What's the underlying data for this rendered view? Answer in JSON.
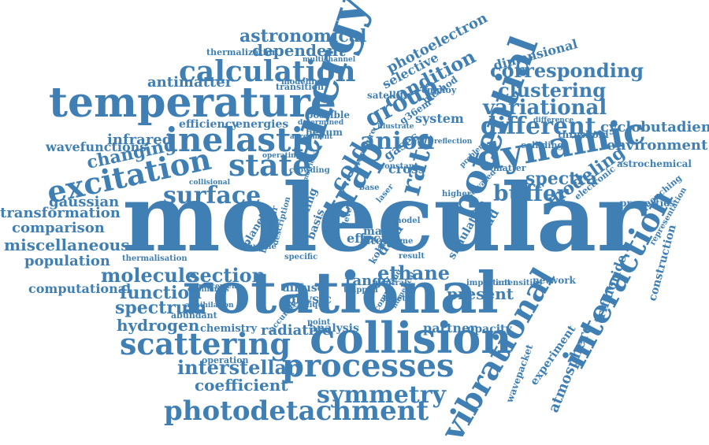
{
  "cloud": {
    "color": "#3f7fb3",
    "words": [
      {
        "text": "molecular"
      },
      {
        "text": "rotational"
      },
      {
        "text": "collision"
      },
      {
        "text": "temperature"
      },
      {
        "text": "processes"
      },
      {
        "text": "scattering"
      },
      {
        "text": "vibrational"
      },
      {
        "text": "interaction"
      },
      {
        "text": "potential"
      },
      {
        "text": "energy"
      },
      {
        "text": "dynamic"
      },
      {
        "text": "photodetachment"
      },
      {
        "text": "excitation"
      },
      {
        "text": "inelastic"
      },
      {
        "text": "state"
      },
      {
        "text": "surface"
      },
      {
        "text": "calculation"
      },
      {
        "text": "trap"
      },
      {
        "text": "rate"
      },
      {
        "text": "symmetry"
      },
      {
        "text": "anion"
      },
      {
        "text": "group"
      },
      {
        "text": "different"
      },
      {
        "text": "variational"
      },
      {
        "text": "interstellar"
      },
      {
        "text": "condition"
      },
      {
        "text": "cold"
      },
      {
        "text": "clustering"
      },
      {
        "text": "buffer"
      },
      {
        "text": "modeling"
      },
      {
        "text": "ethane"
      },
      {
        "text": "section"
      },
      {
        "text": "molecule"
      },
      {
        "text": "spectrum"
      },
      {
        "text": "corresponding"
      },
      {
        "text": "astronomical"
      },
      {
        "text": "changing"
      },
      {
        "text": "miscellaneous"
      },
      {
        "text": "function"
      },
      {
        "text": "present"
      },
      {
        "text": "hydrogen"
      },
      {
        "text": "coefficient"
      },
      {
        "text": "spectra"
      },
      {
        "text": "environment"
      },
      {
        "text": "cyclobutadiene"
      },
      {
        "text": "gaussian"
      },
      {
        "text": "comparison"
      },
      {
        "text": "transformation"
      },
      {
        "text": "population"
      },
      {
        "text": "computational"
      },
      {
        "text": "infrared"
      },
      {
        "text": "wavefunctions"
      },
      {
        "text": "dependent"
      },
      {
        "text": "antimatter"
      },
      {
        "text": "photoelectron"
      },
      {
        "text": "selective"
      },
      {
        "text": "dimensional"
      },
      {
        "text": "range"
      },
      {
        "text": "radiative"
      },
      {
        "text": "data"
      },
      {
        "text": "partner"
      },
      {
        "text": "atmosphere"
      },
      {
        "text": "experiment"
      },
      {
        "text": "trifluoride"
      },
      {
        "text": "construction"
      },
      {
        "text": "physic"
      },
      {
        "text": "diffuse"
      },
      {
        "text": "analysis"
      },
      {
        "text": "opacity"
      },
      {
        "text": "network"
      },
      {
        "text": "chemistry"
      },
      {
        "text": "wavepacket"
      },
      {
        "text": "efficiency"
      },
      {
        "text": "energies"
      },
      {
        "text": "system"
      },
      {
        "text": "gases"
      },
      {
        "text": "cross"
      },
      {
        "text": "effect"
      },
      {
        "text": "mas"
      },
      {
        "text": "atom"
      },
      {
        "text": "cloud"
      },
      {
        "text": "simulation"
      },
      {
        "text": "properties"
      },
      {
        "text": "satellite"
      },
      {
        "text": "helium"
      },
      {
        "text": "possible"
      },
      {
        "text": "thermalization"
      },
      {
        "text": "threshold"
      },
      {
        "text": "colliding"
      },
      {
        "text": "astrochemical"
      },
      {
        "text": "electronic"
      },
      {
        "text": "abundant"
      },
      {
        "text": "operation"
      },
      {
        "text": "thermalisation"
      },
      {
        "text": "modelling"
      },
      {
        "text": "transition"
      },
      {
        "text": "method"
      },
      {
        "text": "employ"
      },
      {
        "text": "g36em"
      },
      {
        "text": "basis"
      },
      {
        "text": "cooling"
      },
      {
        "text": "planet"
      },
      {
        "text": "kohn"
      },
      {
        "text": "crowding"
      },
      {
        "text": "quenching"
      },
      {
        "text": "representation"
      },
      {
        "text": "annihilation"
      },
      {
        "text": "multichannel"
      },
      {
        "text": "determined"
      },
      {
        "text": "point"
      },
      {
        "text": "matter"
      },
      {
        "text": "difference"
      },
      {
        "text": "collisional"
      },
      {
        "text": "operating"
      },
      {
        "text": "agreement"
      },
      {
        "text": "model"
      },
      {
        "text": "time"
      },
      {
        "text": "result"
      },
      {
        "text": "trapped"
      },
      {
        "text": "placement"
      },
      {
        "text": "ethylene"
      },
      {
        "text": "specific"
      },
      {
        "text": "accurate"
      },
      {
        "text": "higher"
      },
      {
        "text": "base"
      },
      {
        "text": "laser"
      },
      {
        "text": "matrices"
      },
      {
        "text": "constant"
      },
      {
        "text": "neutral"
      },
      {
        "text": "important"
      },
      {
        "text": "intensities"
      },
      {
        "text": "computing"
      },
      {
        "text": "technique"
      },
      {
        "text": "behaviour"
      },
      {
        "text": "level"
      },
      {
        "text": "force"
      },
      {
        "text": "procedure"
      },
      {
        "text": "solvated"
      },
      {
        "text": "kinetic"
      },
      {
        "text": "capillaries"
      },
      {
        "text": "description"
      },
      {
        "text": "numerical"
      },
      {
        "text": "illustrate"
      },
      {
        "text": "reflection"
      },
      {
        "text": "problem"
      }
    ]
  }
}
